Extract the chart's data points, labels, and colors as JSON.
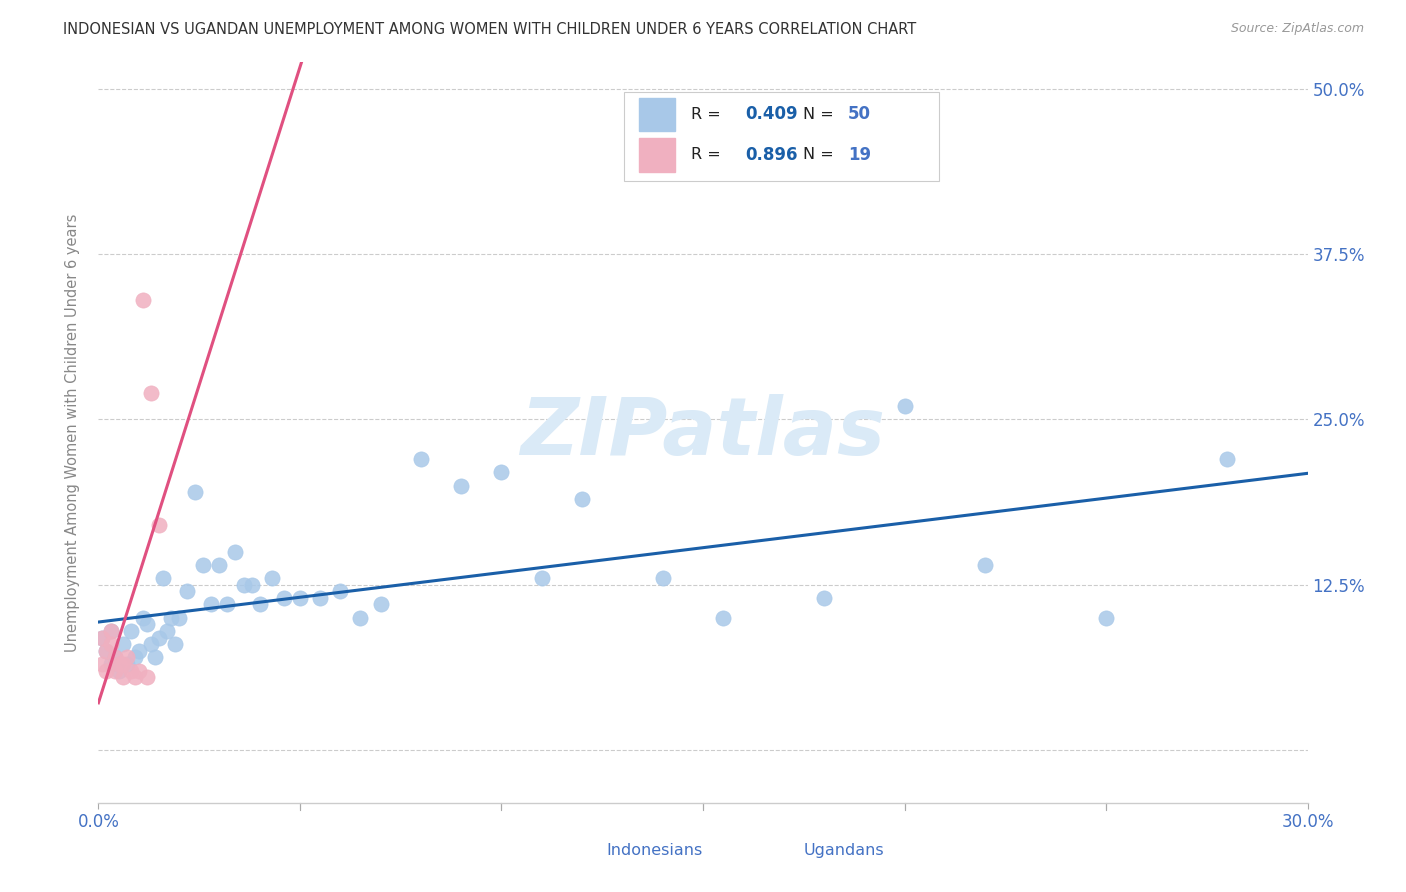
{
  "title": "INDONESIAN VS UGANDAN UNEMPLOYMENT AMONG WOMEN WITH CHILDREN UNDER 6 YEARS CORRELATION CHART",
  "source": "Source: ZipAtlas.com",
  "ylabel": "Unemployment Among Women with Children Under 6 years",
  "xlim": [
    0.0,
    0.3
  ],
  "ylim": [
    -0.04,
    0.52
  ],
  "xtick_positions": [
    0.0,
    0.05,
    0.1,
    0.15,
    0.2,
    0.25,
    0.3
  ],
  "xtick_labels": [
    "0.0%",
    "",
    "",
    "",
    "",
    "",
    "30.0%"
  ],
  "ytick_positions": [
    0.0,
    0.125,
    0.25,
    0.375,
    0.5
  ],
  "ytick_labels": [
    "",
    "12.5%",
    "25.0%",
    "37.5%",
    "50.0%"
  ],
  "indonesian_x": [
    0.001,
    0.002,
    0.003,
    0.003,
    0.004,
    0.005,
    0.006,
    0.007,
    0.008,
    0.009,
    0.01,
    0.011,
    0.012,
    0.013,
    0.014,
    0.015,
    0.016,
    0.017,
    0.018,
    0.019,
    0.02,
    0.022,
    0.024,
    0.026,
    0.028,
    0.03,
    0.032,
    0.034,
    0.036,
    0.038,
    0.04,
    0.043,
    0.046,
    0.05,
    0.055,
    0.06,
    0.065,
    0.07,
    0.08,
    0.09,
    0.1,
    0.11,
    0.12,
    0.14,
    0.155,
    0.18,
    0.2,
    0.22,
    0.25,
    0.28
  ],
  "indonesian_y": [
    0.085,
    0.075,
    0.09,
    0.065,
    0.07,
    0.06,
    0.08,
    0.065,
    0.09,
    0.07,
    0.075,
    0.1,
    0.095,
    0.08,
    0.07,
    0.085,
    0.13,
    0.09,
    0.1,
    0.08,
    0.1,
    0.12,
    0.195,
    0.14,
    0.11,
    0.14,
    0.11,
    0.15,
    0.125,
    0.125,
    0.11,
    0.13,
    0.115,
    0.115,
    0.115,
    0.12,
    0.1,
    0.11,
    0.22,
    0.2,
    0.21,
    0.13,
    0.19,
    0.13,
    0.1,
    0.115,
    0.26,
    0.14,
    0.1,
    0.22
  ],
  "ugandan_x": [
    0.001,
    0.001,
    0.002,
    0.002,
    0.003,
    0.003,
    0.004,
    0.004,
    0.005,
    0.006,
    0.006,
    0.007,
    0.008,
    0.009,
    0.01,
    0.011,
    0.012,
    0.013,
    0.015
  ],
  "ugandan_y": [
    0.085,
    0.065,
    0.075,
    0.06,
    0.09,
    0.08,
    0.07,
    0.06,
    0.065,
    0.065,
    0.055,
    0.07,
    0.06,
    0.055,
    0.06,
    0.34,
    0.055,
    0.27,
    0.17
  ],
  "indonesian_color": "#a8c8e8",
  "ugandan_color": "#f0b0c0",
  "indonesian_line_color": "#1a5fa8",
  "ugandan_line_color": "#e05080",
  "indonesian_R": 0.409,
  "indonesian_N": 50,
  "ugandan_R": 0.896,
  "ugandan_N": 19,
  "background_color": "#ffffff",
  "grid_color": "#cccccc",
  "title_color": "#333333",
  "axis_label_color": "#4472c4",
  "watermark_color": "#daeaf7",
  "marker_size": 120,
  "marker_linewidth": 1.2
}
